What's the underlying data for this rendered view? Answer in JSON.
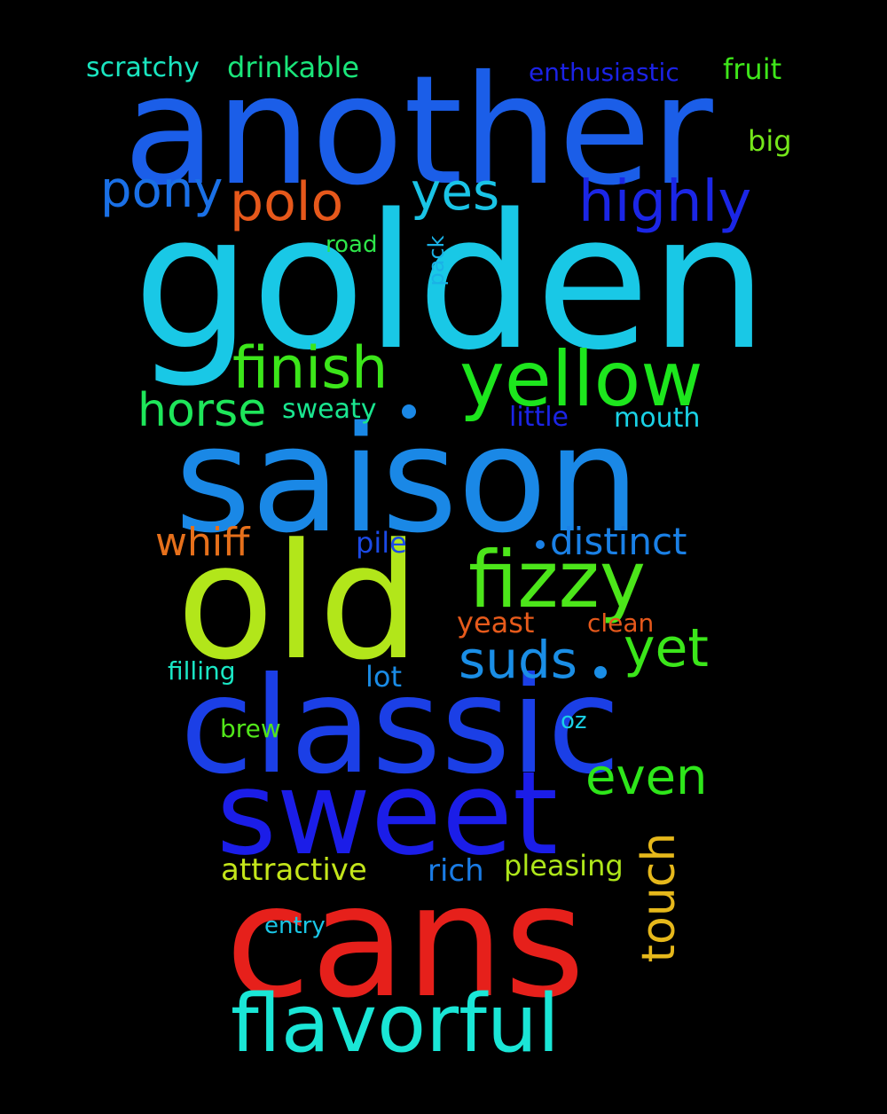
{
  "words": [
    {
      "text": "another",
      "color": "#1b5ee8"
    },
    {
      "text": "golden",
      "color": "#19c8e6"
    },
    {
      "text": "saison",
      "color": "#1a88e6"
    },
    {
      "text": "old",
      "color": "#b2e61a"
    },
    {
      "text": "classic",
      "color": "#1b3fe6"
    },
    {
      "text": "sweet",
      "color": "#1b1de8"
    },
    {
      "text": "cans",
      "color": "#e6201b"
    },
    {
      "text": "flavorful",
      "color": "#1ae6d6"
    },
    {
      "text": "yellow",
      "color": "#1de61d"
    },
    {
      "text": "fizzy",
      "color": "#4ce61a"
    },
    {
      "text": "finish",
      "color": "#3ce61a"
    },
    {
      "text": "horse",
      "color": "#1ee65a"
    },
    {
      "text": "pony",
      "color": "#1a70e6"
    },
    {
      "text": "polo",
      "color": "#e6581b"
    },
    {
      "text": "yes",
      "color": "#1ac4e6"
    },
    {
      "text": "highly",
      "color": "#1b26e6"
    },
    {
      "text": "suds",
      "color": "#1a8ee6"
    },
    {
      "text": "yet",
      "color": "#3be61a"
    },
    {
      "text": "even",
      "color": "#2ee61a"
    },
    {
      "text": "touch",
      "color": "#e6b81b"
    },
    {
      "text": "whiff",
      "color": "#e6701b"
    },
    {
      "text": "distinct",
      "color": "#1a80e6"
    },
    {
      "text": "scratchy",
      "color": "#1ae6c0"
    },
    {
      "text": "drinkable",
      "color": "#1ae67a"
    },
    {
      "text": "enthusiastic",
      "color": "#1b22e6"
    },
    {
      "text": "fruit",
      "color": "#3ee61a"
    },
    {
      "text": "big",
      "color": "#74e61a"
    },
    {
      "text": "road",
      "color": "#2ee64a"
    },
    {
      "text": "pack",
      "color": "#1ab2e6"
    },
    {
      "text": "sweaty",
      "color": "#1ae690"
    },
    {
      "text": "little",
      "color": "#1b24e6"
    },
    {
      "text": "mouth",
      "color": "#1ad2e6"
    },
    {
      "text": "pile",
      "color": "#1b4ae6"
    },
    {
      "text": "yeast",
      "color": "#e65a1b"
    },
    {
      "text": "clean",
      "color": "#e6581b"
    },
    {
      "text": "filling",
      "color": "#1ae6c4"
    },
    {
      "text": "lot",
      "color": "#1a8ce6"
    },
    {
      "text": "brew",
      "color": "#52e61a"
    },
    {
      "text": "oz",
      "color": "#1ad0e6"
    },
    {
      "text": "attractive",
      "color": "#c4e61a"
    },
    {
      "text": "rich",
      "color": "#1a7ce6"
    },
    {
      "text": "pleasing",
      "color": "#aee61a"
    },
    {
      "text": "entry",
      "color": "#1ac6e6"
    }
  ]
}
